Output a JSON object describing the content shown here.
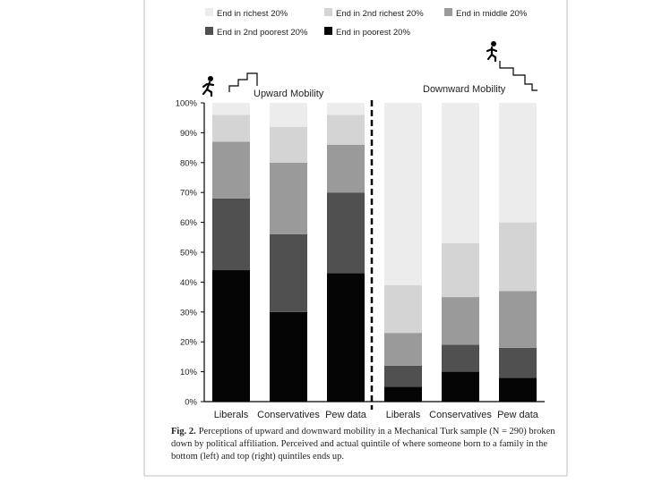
{
  "colors": {
    "richest": "#ececec",
    "second_richest": "#d4d4d4",
    "middle": "#9a9a9a",
    "second_poorest": "#505050",
    "poorest": "#050505",
    "text": "#222222",
    "divider": "#000000"
  },
  "legend": [
    {
      "label": "End in richest 20%",
      "color_key": "richest"
    },
    {
      "label": "End in 2nd richest 20%",
      "color_key": "second_richest"
    },
    {
      "label": "End in middle 20%",
      "color_key": "middle"
    },
    {
      "label": "End in 2nd poorest 20%",
      "color_key": "second_poorest"
    },
    {
      "label": "End in poorest 20%",
      "color_key": "poorest"
    }
  ],
  "chart_data": {
    "type": "bar",
    "stacked": true,
    "panels": [
      {
        "name": "Upward Mobility",
        "icon": "climbing-person-icon"
      },
      {
        "name": "Downward Mobility",
        "icon": "descending-person-icon"
      }
    ],
    "categories": [
      "Liberals",
      "Conservatives",
      "Pew data",
      "Liberals",
      "Conservatives",
      "Pew data"
    ],
    "series": [
      {
        "name": "End in poorest 20%",
        "color_key": "poorest",
        "values": [
          44,
          30,
          43,
          5,
          10,
          8
        ]
      },
      {
        "name": "End in 2nd poorest 20%",
        "color_key": "second_poorest",
        "values": [
          24,
          26,
          27,
          7,
          9,
          10
        ]
      },
      {
        "name": "End in middle 20%",
        "color_key": "middle",
        "values": [
          19,
          24,
          16,
          11,
          16,
          19
        ]
      },
      {
        "name": "End in 2nd richest 20%",
        "color_key": "second_richest",
        "values": [
          9,
          12,
          10,
          16,
          18,
          23
        ]
      },
      {
        "name": "End in richest 20%",
        "color_key": "richest",
        "values": [
          4,
          8,
          4,
          61,
          47,
          40
        ]
      }
    ],
    "yticks": [
      "0%",
      "10%",
      "20%",
      "30%",
      "40%",
      "50%",
      "60%",
      "70%",
      "80%",
      "90%",
      "100%"
    ],
    "ylim": [
      0,
      100
    ],
    "xlabel": "",
    "ylabel": ""
  },
  "caption": {
    "label": "Fig. 2.",
    "text": "Perceptions of upward and downward mobility in a Mechanical Turk sample (N = 290) broken down by political affiliation. Perceived and actual quintile of where someone born to a family in the bottom (left) and top (right) quintiles ends up."
  }
}
